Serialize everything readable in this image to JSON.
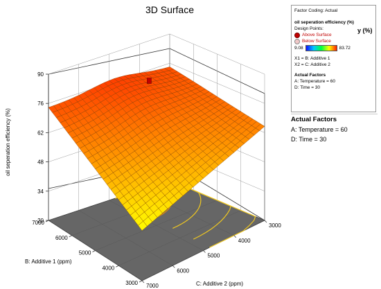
{
  "chart_data": {
    "type": "surface3d",
    "title": "3D Surface",
    "zlabel": "oil seperation efficiency  (%)",
    "xlabel": "C: Additive 2 (ppm)",
    "ylabel": "B: Additive 1  (ppm)",
    "z_ticks": [
      "20",
      "34",
      "48",
      "62",
      "76",
      "90"
    ],
    "zlim": [
      20,
      90
    ],
    "x_ticks": [
      "3000",
      "4000",
      "5000",
      "6000",
      "7000"
    ],
    "y_ticks": [
      "3000",
      "4000",
      "5000",
      "6000",
      "7000"
    ],
    "xlim": [
      3000,
      7000
    ],
    "ylim": [
      3000,
      7000
    ],
    "surface_corners": {
      "x3000_y3000": 65,
      "x7000_y3000": 44,
      "x3000_y7000": 74,
      "x7000_y7000": 74,
      "peak": 78
    },
    "design_point": {
      "additive2": 3000,
      "additive1": 7000,
      "value": 78,
      "position": "Above Surface"
    }
  },
  "legend": {
    "factor_coding": "Factor Coding: Actual",
    "response": "oil seperation efficiency  (%)",
    "design_points": "Design Points:",
    "above": "Above Surface",
    "below": "Below Surface",
    "range_min": "9.08",
    "range_max": "83.72",
    "x1": "X1 = B: Additive 1",
    "x2": "X2 = C: Additive 2",
    "actual_factors": "Actual Factors",
    "temp": "A: Temperature = 60",
    "time": "D: Time = 30",
    "clipped_tail": "y  (%)"
  },
  "actual_factors_panel": {
    "title": "Actual Factors",
    "temp": "A: Temperature = 60",
    "time": "D: Time = 30"
  },
  "colors": {
    "low": "#ffff00",
    "mid": "#ff9900",
    "high": "#ff4400",
    "floor": "#666666",
    "contour": "#f0c020",
    "point": "#c00000"
  }
}
